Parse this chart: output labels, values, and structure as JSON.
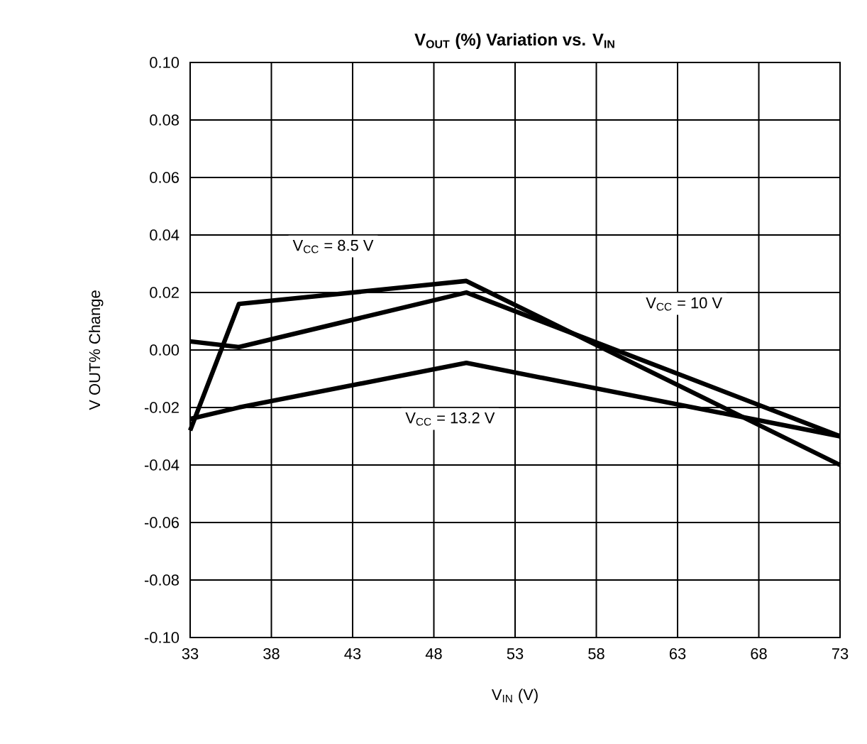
{
  "chart_data": {
    "type": "line",
    "title": "V$_{OUT}$ (%) Variation vs. V$_{IN}$",
    "xlabel": "V$_{IN}$ (V)",
    "ylabel": "V OUT% Change",
    "x": [
      33,
      36,
      50,
      73
    ],
    "series": [
      {
        "color": "#000000",
        "values": [
          -0.028,
          0.016,
          0.024,
          -0.04
        ]
      },
      {
        "color": "#000000",
        "values": [
          0.003,
          0.001,
          0.02,
          -0.03
        ]
      },
      {
        "color": "#000000",
        "values": [
          -0.024,
          -0.02,
          -0.0045,
          -0.03
        ]
      }
    ],
    "annotations": [
      "V$_{CC}$ = 8.5 V",
      "V$_{CC}$ = 10 V",
      "V$_{CC}$ = 13.2 V"
    ],
    "xlim": [
      33,
      73
    ],
    "xticks": [
      33,
      38,
      43,
      48,
      53,
      58,
      63,
      68,
      73
    ],
    "ylim": [
      -0.1,
      0.1
    ],
    "yticks": [
      {
        "value": -0.1,
        "label": "-0.10"
      },
      {
        "value": -0.08,
        "label": "-0.08"
      },
      {
        "value": -0.06,
        "label": "-0.06"
      },
      {
        "value": -0.04,
        "label": "-0.04"
      },
      {
        "value": -0.02,
        "label": "-0.02"
      },
      {
        "value": 0,
        "label": "0.00"
      },
      {
        "value": 0.02,
        "label": "0.02"
      },
      {
        "value": 0.04,
        "label": "0.04"
      },
      {
        "value": 0.06,
        "label": "0.06"
      },
      {
        "value": 0.08,
        "label": "0.08"
      },
      {
        "value": 0.1,
        "label": "0.10"
      }
    ],
    "grid": true,
    "line_style": "solid"
  }
}
